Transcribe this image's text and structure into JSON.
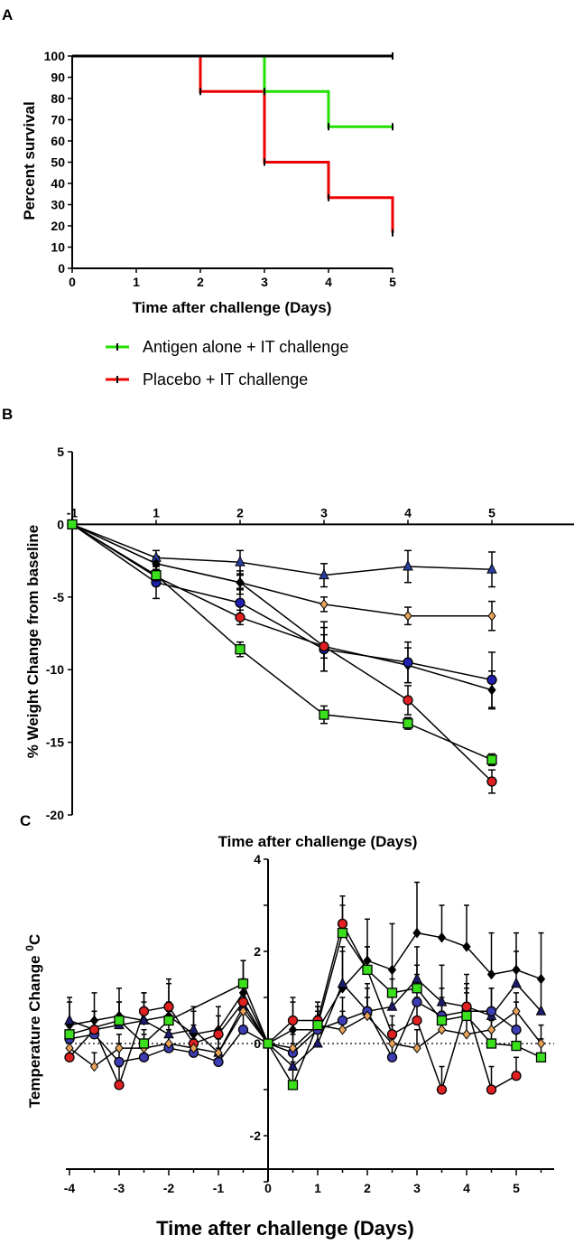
{
  "panel_labels": {
    "a": "A",
    "b": "B",
    "c": "C"
  },
  "chart_data": [
    {
      "type": "line",
      "subtype": "step-survival",
      "panel": "A",
      "xlabel": "Time after challenge (Days)",
      "ylabel": "Percent survival",
      "xlim": [
        0,
        5
      ],
      "ylim": [
        0,
        100
      ],
      "xticks": [
        "0",
        "1",
        "2",
        "3",
        "4",
        "5"
      ],
      "yticks": [
        "0",
        "10",
        "20",
        "30",
        "40",
        "50",
        "60",
        "70",
        "80",
        "90",
        "100"
      ],
      "legend_position": "bottom",
      "series": [
        {
          "name": "",
          "color": "#000000",
          "x": [
            0,
            5
          ],
          "y": [
            100,
            100
          ]
        },
        {
          "name": "Antigen alone + IT challenge",
          "color": "#22e000",
          "x": [
            0,
            3,
            4,
            5
          ],
          "y": [
            100,
            83.3,
            66.7,
            66.7
          ]
        },
        {
          "name": "Placebo + IT challenge",
          "color": "#ee0000",
          "x": [
            0,
            2,
            3,
            4,
            5
          ],
          "y": [
            100,
            83.3,
            50,
            33.3,
            16.7
          ]
        }
      ]
    },
    {
      "type": "line",
      "panel": "B",
      "xlabel": "Time after challenge (Days)",
      "ylabel": "% Weight Change from baseline",
      "xlim": [
        -1,
        5.7
      ],
      "ylim": [
        -20,
        5
      ],
      "xticks": [
        "-1",
        "1",
        "2",
        "3",
        "4",
        "5"
      ],
      "yticks": [
        "5",
        "0",
        "-5",
        "-10",
        "-15",
        "-20"
      ],
      "x": [
        -1,
        1,
        2,
        3,
        4,
        5
      ],
      "series": [
        {
          "color": "#2a3f9f",
          "marker": "triangle",
          "values": [
            0,
            -2.3,
            -2.6,
            -3.5,
            -2.9,
            -3.1
          ],
          "err": [
            0,
            0.5,
            0.8,
            0.8,
            1.1,
            1.2
          ]
        },
        {
          "color": "#e8a35a",
          "marker": "diamond",
          "values": [
            0,
            -2.7,
            -4.0,
            -5.5,
            -6.3,
            -6.3
          ],
          "err": [
            0,
            0.4,
            0.5,
            0.5,
            0.6,
            1.0
          ]
        },
        {
          "color": "#000000",
          "marker": "diamond",
          "values": [
            0,
            -2.7,
            -4.0,
            -8.4,
            -9.7,
            -11.4
          ],
          "err": [
            0,
            0.5,
            0.8,
            1.7,
            1.2,
            1.3
          ]
        },
        {
          "color": "#2020b0",
          "marker": "circle",
          "values": [
            0,
            -4.0,
            -5.4,
            -8.6,
            -9.5,
            -10.7
          ],
          "err": [
            0,
            1.1,
            1.0,
            1.5,
            1.4,
            1.9
          ]
        },
        {
          "color": "#e02020",
          "marker": "circle",
          "values": [
            0,
            -3.6,
            -6.4,
            -8.4,
            -12.1,
            -17.7
          ],
          "err": [
            0,
            0.5,
            0.5,
            0.8,
            1.0,
            0.8
          ]
        },
        {
          "color": "#39e01b",
          "marker": "square",
          "values": [
            0,
            -3.5,
            -8.6,
            -13.1,
            -13.7,
            -16.2
          ],
          "err": [
            0,
            0.4,
            0.5,
            0.6,
            0.4,
            0.4
          ]
        }
      ]
    },
    {
      "type": "line",
      "panel": "C",
      "xlabel": "Time after challenge (Days)",
      "ylabel": "Temperature Change 0C",
      "xlim": [
        -4.4,
        5.7
      ],
      "ylim": [
        -3,
        4
      ],
      "xticks": [
        "-4",
        "-3",
        "-2",
        "-1",
        "0",
        "1",
        "2",
        "3",
        "4",
        "5"
      ],
      "yticks": [
        "4",
        "2",
        "0",
        "-2"
      ],
      "reference_line_y": 0,
      "x": [
        -4,
        -3.5,
        -3,
        -2.5,
        -2,
        -1.5,
        -1,
        -0.5,
        0,
        0.5,
        1,
        1.5,
        2,
        2.5,
        3,
        3.5,
        4,
        4.5,
        5,
        5.5
      ],
      "series": [
        {
          "color": "#000000",
          "marker": "diamond",
          "values": [
            0.4,
            0.5,
            0.6,
            0.5,
            0.6,
            0.2,
            0.3,
            1.1,
            0,
            0.3,
            0.3,
            1.2,
            1.8,
            1.6,
            2.4,
            2.3,
            2.1,
            1.5,
            1.6,
            1.4
          ],
          "err": [
            0.6,
            0.6,
            0.6,
            0.6,
            0.8,
            0.6,
            0.5,
            0.7,
            0,
            0.6,
            0.5,
            0.9,
            0.9,
            1.0,
            1.1,
            0.7,
            0.9,
            0.9,
            0.8,
            1.0
          ]
        },
        {
          "color": "#1c1c6c",
          "marker": "triangle",
          "values": [
            0.5,
            0.3,
            0.4,
            0.5,
            0.2,
            0.3,
            -0.2,
            0.8,
            0,
            -0.5,
            0,
            1.3,
            0.7,
            0.8,
            1.4,
            0.9,
            0.8,
            0.6,
            1.3,
            0.7
          ],
          "err": [
            0.4,
            0.4,
            0.5,
            0.4,
            0.5,
            0.4,
            0.4,
            0.6,
            0,
            0.5,
            0.4,
            0.7,
            0.6,
            0.6,
            0.7,
            0.8,
            0.7,
            0.6,
            0.7,
            0.7
          ]
        },
        {
          "color": "#3d3db3",
          "marker": "circle",
          "values": [
            0.1,
            0.2,
            -0.4,
            -0.3,
            -0.1,
            -0.2,
            -0.4,
            0.3,
            0,
            -0.2,
            0.3,
            0.5,
            0.7,
            -0.3,
            0.9,
            0.6,
            0.7,
            0.7,
            0.3,
            null
          ],
          "err": [
            0.3,
            0.3,
            0.4,
            0.3,
            0.4,
            0.3,
            0.3,
            0.4,
            0,
            0.4,
            0.3,
            0.5,
            0.5,
            0.4,
            0.6,
            0.6,
            0.5,
            0.5,
            0.6,
            0
          ]
        },
        {
          "color": "#e02020",
          "marker": "circle",
          "values": [
            -0.3,
            0.3,
            -0.9,
            0.7,
            0.8,
            0,
            0.2,
            0.9,
            0,
            0.5,
            0.5,
            2.6,
            1.6,
            0.2,
            0.5,
            -1.0,
            0.8,
            -1.0,
            -0.7,
            null
          ],
          "err": [
            0.4,
            0.4,
            0.4,
            0.4,
            0.5,
            0.4,
            0.4,
            0.5,
            0,
            0.5,
            0.4,
            0.6,
            0.5,
            0.4,
            0.5,
            0.5,
            0.5,
            0.5,
            0.4,
            0
          ]
        },
        {
          "color": "#e8a35a",
          "marker": "diamond",
          "values": [
            -0.1,
            -0.5,
            -0.1,
            -0.1,
            0,
            -0.1,
            -0.2,
            0.7,
            0,
            -0.1,
            0.4,
            0.3,
            0.6,
            0,
            -0.1,
            0.3,
            0.2,
            0.3,
            0.7,
            0
          ],
          "err": [
            0.3,
            0.3,
            0.3,
            0.3,
            0.3,
            0.3,
            0.3,
            0.4,
            0,
            0.4,
            0.3,
            0.4,
            0.4,
            0.4,
            0.4,
            0.4,
            0.4,
            0.4,
            0.4,
            0.4
          ]
        },
        {
          "color": "#39e01b",
          "marker": "square",
          "values": [
            0.2,
            null,
            0.5,
            0,
            0.5,
            null,
            null,
            1.3,
            0,
            -0.9,
            0.4,
            2.4,
            1.6,
            1.1,
            1.2,
            0.5,
            0.6,
            0,
            -0.05,
            -0.3
          ],
          "err": [
            0.3,
            0,
            0.4,
            0.3,
            0.4,
            0,
            0,
            0.5,
            0,
            0.5,
            0.4,
            0.6,
            0.5,
            0.5,
            0.5,
            0.5,
            0.5,
            0.5,
            0.4,
            0.4
          ]
        }
      ]
    }
  ]
}
